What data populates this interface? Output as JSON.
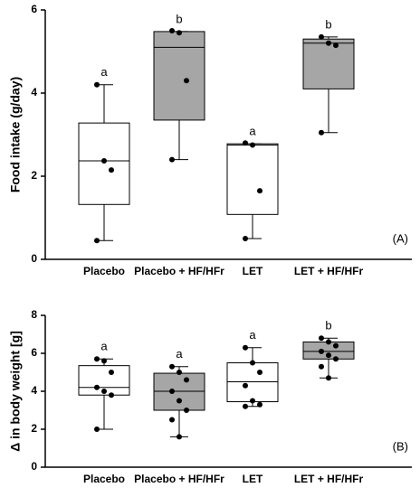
{
  "chart_data": [
    {
      "type": "box",
      "ylabel": "Food intake (g/day)",
      "panel_label": "(A)",
      "categories": [
        "Placebo",
        "Placebo + HF/HFr",
        "LET",
        "LET + HF/HFr"
      ],
      "ylim": [
        0,
        6
      ],
      "yticks": [
        0,
        2,
        4,
        6
      ],
      "boxes": [
        {
          "min": 0.45,
          "q1": 1.32,
          "median": 2.37,
          "q3": 3.28,
          "max": 4.2,
          "points": [
            4.2,
            2.37,
            2.15,
            0.45
          ],
          "color": "#ffffff",
          "letter": "a"
        },
        {
          "min": 2.4,
          "q1": 3.35,
          "median": 5.1,
          "q3": 5.48,
          "max": 5.48,
          "points": [
            5.5,
            5.45,
            4.3,
            2.4
          ],
          "color": "#a6a6a6",
          "letter": "b"
        },
        {
          "min": 0.5,
          "q1": 1.08,
          "median": 2.75,
          "q3": 2.78,
          "max": 2.78,
          "points": [
            2.8,
            2.75,
            1.65,
            0.5
          ],
          "color": "#ffffff",
          "letter": "a"
        },
        {
          "min": 3.05,
          "q1": 4.1,
          "median": 5.2,
          "q3": 5.3,
          "max": 5.35,
          "points": [
            5.35,
            5.2,
            5.15,
            3.05
          ],
          "color": "#a6a6a6",
          "letter": "b"
        }
      ]
    },
    {
      "type": "box",
      "ylabel": "Δ in body weight [g]",
      "panel_label": "(B)",
      "categories": [
        "Placebo",
        "Placebo + HF/HFr",
        "LET",
        "LET + HF/HFr"
      ],
      "ylim": [
        0,
        8
      ],
      "yticks": [
        0,
        2,
        4,
        6,
        8
      ],
      "boxes": [
        {
          "min": 2.0,
          "q1": 3.8,
          "median": 4.2,
          "q3": 5.35,
          "max": 5.7,
          "points": [
            5.7,
            5.6,
            5.0,
            4.2,
            4.0,
            3.8,
            2.0
          ],
          "color": "#ffffff",
          "letter": "a"
        },
        {
          "min": 1.6,
          "q1": 3.0,
          "median": 4.0,
          "q3": 4.95,
          "max": 5.3,
          "points": [
            5.3,
            5.0,
            4.6,
            4.0,
            3.5,
            3.0,
            2.5,
            1.6
          ],
          "color": "#a6a6a6",
          "letter": "a"
        },
        {
          "min": 3.2,
          "q1": 3.45,
          "median": 4.5,
          "q3": 5.5,
          "max": 6.3,
          "points": [
            6.3,
            5.5,
            5.0,
            4.3,
            3.5,
            3.3,
            3.2
          ],
          "color": "#ffffff",
          "letter": "a"
        },
        {
          "min": 4.7,
          "q1": 5.7,
          "median": 6.1,
          "q3": 6.6,
          "max": 6.8,
          "points": [
            6.8,
            6.6,
            6.4,
            6.1,
            5.9,
            5.7,
            5.3,
            4.7
          ],
          "color": "#a6a6a6",
          "letter": "b"
        }
      ]
    }
  ]
}
